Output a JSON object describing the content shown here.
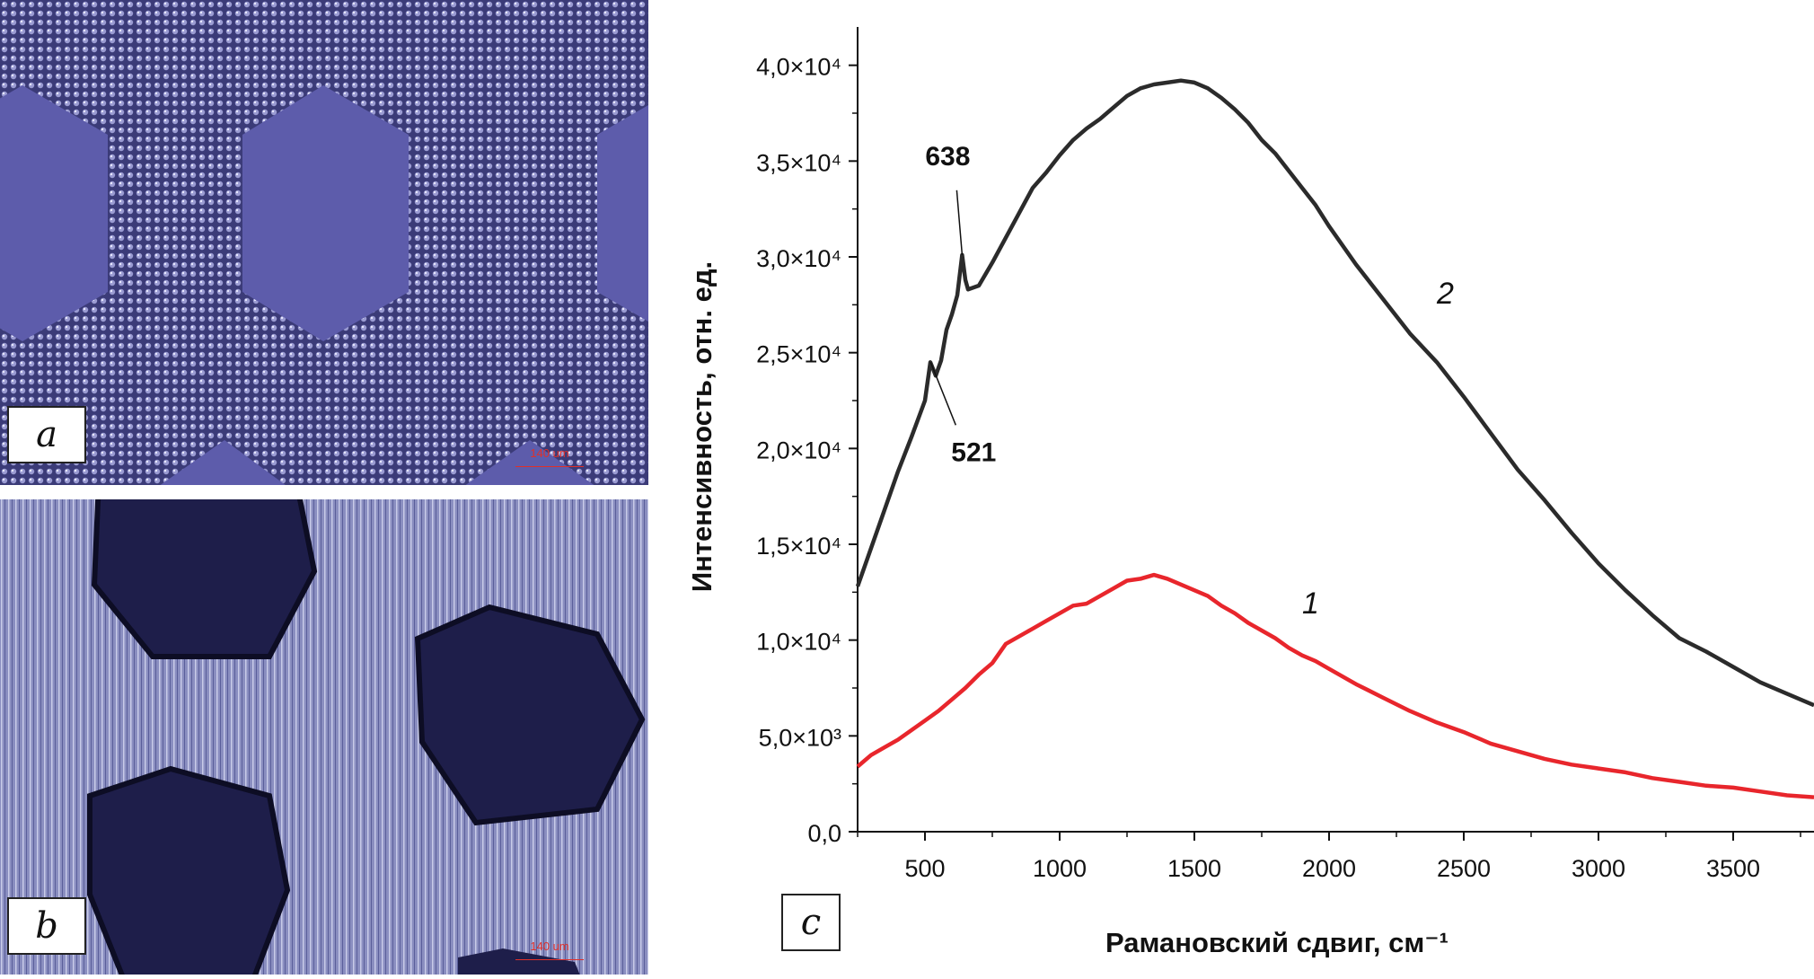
{
  "panels": {
    "a": {
      "letter": "a",
      "scalebar": "140 um"
    },
    "b": {
      "letter": "b",
      "scalebar": "140 um"
    },
    "c": {
      "letter": "c"
    }
  },
  "chart_data": {
    "type": "line",
    "xlabel": "Рамановский сдвиг, см⁻¹",
    "ylabel": "Интенсивность, отн. ед.",
    "xlim": [
      250,
      3800
    ],
    "ylim": [
      0,
      42000
    ],
    "x_ticks": [
      500,
      1000,
      1500,
      2000,
      2500,
      3000,
      3500
    ],
    "y_ticks": [
      {
        "value": 0,
        "label": "0,0"
      },
      {
        "value": 5000,
        "label": "5,0×10³"
      },
      {
        "value": 10000,
        "label": "1,0×10⁴"
      },
      {
        "value": 15000,
        "label": "1,5×10⁴"
      },
      {
        "value": 20000,
        "label": "2,0×10⁴"
      },
      {
        "value": 25000,
        "label": "2,5×10⁴"
      },
      {
        "value": 30000,
        "label": "3,0×10⁴"
      },
      {
        "value": 35000,
        "label": "3,5×10⁴"
      },
      {
        "value": 40000,
        "label": "4,0×10⁴"
      }
    ],
    "series": [
      {
        "name": "1",
        "color": "#e8262c",
        "x": [
          250,
          300,
          350,
          400,
          450,
          500,
          550,
          600,
          650,
          700,
          750,
          800,
          850,
          900,
          950,
          1000,
          1050,
          1100,
          1150,
          1200,
          1250,
          1300,
          1350,
          1400,
          1450,
          1500,
          1550,
          1600,
          1650,
          1700,
          1750,
          1800,
          1850,
          1900,
          1950,
          2000,
          2100,
          2200,
          2300,
          2400,
          2500,
          2600,
          2700,
          2800,
          2900,
          3000,
          3100,
          3200,
          3300,
          3400,
          3500,
          3600,
          3700,
          3800
        ],
        "y": [
          3400,
          4000,
          4400,
          4800,
          5300,
          5800,
          6300,
          6900,
          7500,
          8200,
          8800,
          9800,
          10200,
          10600,
          11000,
          11400,
          11800,
          11900,
          12300,
          12700,
          13100,
          13200,
          13400,
          13200,
          12900,
          12600,
          12300,
          11800,
          11400,
          10900,
          10500,
          10100,
          9600,
          9200,
          8900,
          8500,
          7700,
          7000,
          6300,
          5700,
          5200,
          4600,
          4200,
          3800,
          3500,
          3300,
          3100,
          2800,
          2600,
          2400,
          2300,
          2100,
          1900,
          1800
        ]
      },
      {
        "name": "2",
        "color": "#2b2b2b",
        "x": [
          250,
          300,
          350,
          400,
          450,
          500,
          520,
          540,
          560,
          580,
          600,
          620,
          638,
          650,
          660,
          700,
          750,
          800,
          850,
          900,
          950,
          1000,
          1050,
          1100,
          1150,
          1200,
          1250,
          1300,
          1350,
          1400,
          1450,
          1500,
          1550,
          1600,
          1650,
          1700,
          1750,
          1800,
          1850,
          1900,
          1950,
          2000,
          2100,
          2200,
          2300,
          2400,
          2500,
          2600,
          2700,
          2800,
          2900,
          3000,
          3100,
          3200,
          3300,
          3400,
          3500,
          3600,
          3700,
          3800
        ],
        "y": [
          12800,
          14800,
          16800,
          18800,
          20600,
          22500,
          24500,
          23800,
          24600,
          26200,
          27000,
          28000,
          30100,
          28800,
          28300,
          28500,
          29700,
          31000,
          32300,
          33600,
          34400,
          35300,
          36100,
          36700,
          37200,
          37800,
          38400,
          38800,
          39000,
          39100,
          39200,
          39100,
          38800,
          38300,
          37700,
          37000,
          36100,
          35400,
          34500,
          33600,
          32700,
          31600,
          29600,
          27800,
          26000,
          24500,
          22700,
          20800,
          18900,
          17300,
          15600,
          14000,
          12600,
          11300,
          10100,
          9400,
          8600,
          7800,
          7200,
          6600
        ]
      }
    ],
    "annotations": [
      {
        "text": "638",
        "x": 638,
        "y": 30100
      },
      {
        "text": "521",
        "x": 521,
        "y": 24500
      }
    ]
  }
}
